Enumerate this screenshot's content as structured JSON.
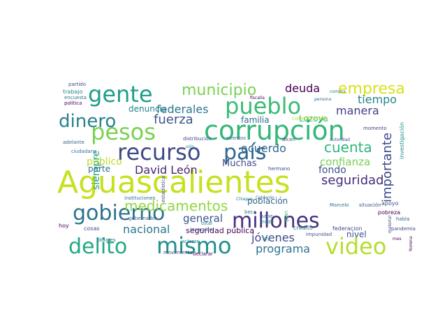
{
  "wordcloud": {
    "words": [
      {
        "text": "Aguascalientes",
        "color": "#c8e020"
      },
      {
        "text": "corrupción",
        "color": "#35b779"
      },
      {
        "text": "pueblo",
        "color": "#3bbb75"
      },
      {
        "text": "gente",
        "color": "#1f9e89"
      },
      {
        "text": "pesos",
        "color": "#7ad151"
      },
      {
        "text": "dinero",
        "color": "#26828e"
      },
      {
        "text": "recurso",
        "color": "#3e4989"
      },
      {
        "text": "país",
        "color": "#31688e"
      },
      {
        "text": "gobierno",
        "color": "#2c728e"
      },
      {
        "text": "millones",
        "color": "#46327e"
      },
      {
        "text": "mismo",
        "color": "#218f8d"
      },
      {
        "text": "delito",
        "color": "#22a884"
      },
      {
        "text": "video",
        "color": "#b5de2b"
      },
      {
        "text": "municipio",
        "color": "#7ad151"
      },
      {
        "text": "empresa",
        "color": "#d8e219"
      },
      {
        "text": "fuerza",
        "color": "#3b528b"
      },
      {
        "text": "federales",
        "color": "#2a788e"
      },
      {
        "text": "cuenta",
        "color": "#2fb47c"
      },
      {
        "text": "manera",
        "color": "#433e85"
      },
      {
        "text": "deuda",
        "color": "#440154"
      },
      {
        "text": "tiempo",
        "color": "#26828e"
      },
      {
        "text": "acuerdo",
        "color": "#31688e"
      },
      {
        "text": "David León",
        "color": "#482475"
      },
      {
        "text": "medicamentos",
        "color": "#90d743"
      },
      {
        "text": "importante",
        "color": "#3e4989"
      },
      {
        "text": "confianza",
        "color": "#7ad151"
      },
      {
        "text": "seguridad",
        "color": "#472d7b"
      },
      {
        "text": "fondo",
        "color": "#3b528b"
      },
      {
        "text": "jóvenes",
        "color": "#3e4989"
      },
      {
        "text": "programa",
        "color": "#2c728e"
      },
      {
        "text": "nacional",
        "color": "#2a788e"
      },
      {
        "text": "general",
        "color": "#3b528b"
      },
      {
        "text": "población",
        "color": "#31688e"
      },
      {
        "text": "siempre",
        "color": "#1f9e89"
      },
      {
        "text": "público",
        "color": "#b5de2b"
      },
      {
        "text": "Muchas",
        "color": "#3e4989"
      },
      {
        "text": "denuncia",
        "color": "#26828e"
      },
      {
        "text": "parte",
        "color": "#2c728e"
      },
      {
        "text": "familia",
        "color": "#31688e"
      },
      {
        "text": "Lozoya",
        "color": "#35b779"
      },
      {
        "text": "nivel",
        "color": "#3b528b"
      },
      {
        "text": "seguridad pública",
        "color": "#440154"
      },
      {
        "text": "federacion",
        "color": "#3e4989"
      },
      {
        "text": "crédito",
        "color": "#2a788e"
      },
      {
        "text": "investigación",
        "color": "#21918c"
      },
      {
        "text": "apoyo",
        "color": "#3b528b"
      },
      {
        "text": "cosas",
        "color": "#3e4989"
      },
      {
        "text": "hoy",
        "color": "#440154"
      },
      {
        "text": "total",
        "color": "#26828e"
      },
      {
        "text": "sabe",
        "color": "#31688e"
      },
      {
        "text": "modo",
        "color": "#21918c"
      },
      {
        "text": "gran",
        "color": "#35b779"
      },
      {
        "text": "beca",
        "color": "#2c728e"
      },
      {
        "text": "estadística",
        "color": "#3e4989"
      },
      {
        "text": "ley",
        "color": "#21918c"
      },
      {
        "text": "situación",
        "color": "#3b528b"
      },
      {
        "text": "pobreza",
        "color": "#440154"
      },
      {
        "text": "pandemia",
        "color": "#3e4989"
      },
      {
        "text": "habla",
        "color": "#31688e"
      },
      {
        "text": "trabajo",
        "color": "#26828e"
      },
      {
        "text": "partido",
        "color": "#3e4989"
      },
      {
        "text": "encuesta",
        "color": "#2c728e"
      },
      {
        "text": "política",
        "color": "#440154"
      },
      {
        "text": "adelante",
        "color": "#31688e"
      },
      {
        "text": "ciudadano",
        "color": "#2c728e"
      },
      {
        "text": "distribución",
        "color": "#3e4989"
      },
      {
        "text": "sólo",
        "color": "#21918c"
      },
      {
        "text": "fiscalía",
        "color": "#440154"
      },
      {
        "text": "persona",
        "color": "#31688e"
      },
      {
        "text": "compra",
        "color": "#2a788e"
      },
      {
        "text": "momento",
        "color": "#3e4989"
      },
      {
        "text": "coordinación",
        "color": "#b5de2b"
      },
      {
        "text": "autoridad",
        "color": "#3b528b"
      },
      {
        "text": "hermano",
        "color": "#3e4989"
      },
      {
        "text": "instituciones",
        "color": "#2c728e"
      },
      {
        "text": "gobernador",
        "color": "#31688e"
      },
      {
        "text": "declarar",
        "color": "#440154"
      },
      {
        "text": "movimiento",
        "color": "#3e4989"
      },
      {
        "text": "aclarar",
        "color": "#26828e"
      },
      {
        "text": "dólares",
        "color": "#2c728e"
      },
      {
        "text": "impunidad",
        "color": "#3b528b"
      },
      {
        "text": "Marcelo",
        "color": "#2c728e"
      },
      {
        "text": "Norena",
        "color": "#440154"
      },
      {
        "text": "material",
        "color": "#3e4989"
      },
      {
        "text": "inversión",
        "color": "#3b528b"
      },
      {
        "text": "eventos",
        "color": "#31688e"
      },
      {
        "text": "dicen",
        "color": "#3e4989"
      },
      {
        "text": "Calderón",
        "color": "#31688e"
      },
      {
        "text": "Chiapas",
        "color": "#2a788e"
      },
      {
        "text": "mes",
        "color": "#440154"
      }
    ]
  }
}
